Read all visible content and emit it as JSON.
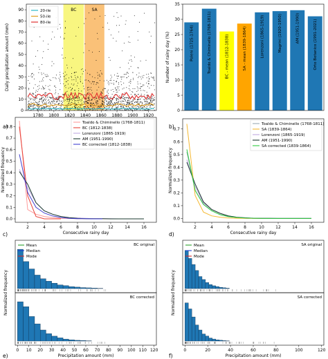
{
  "chart_data": [
    {
      "panel": "a)",
      "type": "scatter",
      "xlabel": "Time (yr)",
      "ylabel": "Daily precipitation amount (mm)",
      "xlim": [
        1765,
        1930
      ],
      "ylim": [
        0,
        95
      ],
      "xticks": [
        1780,
        1800,
        1820,
        1840,
        1860,
        1880,
        1900,
        1920
      ],
      "yticks": [
        0,
        10,
        20,
        30,
        40,
        50,
        60,
        70,
        80,
        90
      ],
      "shaded": [
        {
          "label": "BC",
          "from": 1812,
          "to": 1838,
          "color": "#f7f56a"
        },
        {
          "label": "SA",
          "from": 1839,
          "to": 1864,
          "color": "#f9b660"
        }
      ],
      "series": [
        {
          "name": "20-ile",
          "color": "#2ab8c8",
          "value": 1.5
        },
        {
          "name": "50-ile",
          "color": "#e0a020",
          "value": 5
        },
        {
          "name": "80-ile",
          "color": "#e03030",
          "value": 13
        }
      ]
    },
    {
      "panel": "b)",
      "type": "bar",
      "ylabel": "Number of rainy day (%)",
      "ylim": [
        0,
        35
      ],
      "yticks": [
        0,
        5,
        10,
        15,
        20,
        25,
        30,
        35
      ],
      "categories": [
        "Poleni (1725-1764)",
        "Toaldo & Chiminello (1768-1811)",
        "BC - mean (1812-1838)",
        "SA - mean (1839-1864)",
        "Lorenzoni (1865-1919)",
        "Magrini (1920-1950)",
        "AM (1951-1990)",
        "Orto Botanico (1991-2021)"
      ],
      "values": [
        29,
        33.5,
        26,
        28.6,
        32.3,
        32.7,
        33,
        31
      ],
      "colors": [
        "#1f77b4",
        "#1f77b4",
        "#ffff00",
        "#ffa500",
        "#1f77b4",
        "#1f77b4",
        "#1f77b4",
        "#1f77b4"
      ]
    },
    {
      "panel": "c)",
      "type": "line",
      "xlabel": "Consecutive rainy day",
      "ylabel": "Normalized frequency",
      "xlim": [
        0.5,
        17.5
      ],
      "ylim": [
        -0.03,
        0.88
      ],
      "xticks": [
        2,
        4,
        6,
        8,
        10,
        12,
        14,
        16
      ],
      "yticks": [
        0.0,
        0.1,
        0.2,
        0.3,
        0.4,
        0.5,
        0.6,
        0.7,
        0.8
      ],
      "x": [
        1,
        2,
        3,
        4,
        5,
        6,
        7,
        8,
        9,
        10,
        11,
        12,
        13,
        14,
        15,
        16
      ],
      "series": [
        {
          "name": "Toaldo & Chiminello (1768-1811)",
          "color": "#ff9a9a",
          "values": [
            0.85,
            0.08,
            0.04,
            0.02,
            0.01,
            0.005,
            0.003,
            0.002,
            0.001,
            0.001,
            0.0,
            0.0,
            0.0,
            0.0,
            0.0,
            0.0
          ]
        },
        {
          "name": "BC (1812-1838)",
          "color": "#e8443a",
          "values": [
            0.8,
            0.2,
            0.02,
            0.0,
            0.0,
            0.0,
            null,
            null,
            null,
            null,
            null,
            null,
            null,
            null,
            null,
            null
          ]
        },
        {
          "name": "Lorenzoni (1865-1919)",
          "color": "#bfa8e0",
          "values": [
            0.43,
            0.27,
            0.14,
            0.07,
            0.04,
            0.02,
            0.01,
            0.008,
            0.004,
            0.002,
            0.001,
            0.001,
            0.0,
            0.0,
            0.0,
            0.0
          ]
        },
        {
          "name": "AM (1951-1990)",
          "color": "#1a3a2e",
          "values": [
            0.41,
            0.3,
            0.14,
            0.07,
            0.04,
            0.02,
            0.01,
            0.005,
            0.002,
            0.001,
            0.001,
            0.0,
            0.0,
            0.0,
            0.0,
            0.0
          ]
        },
        {
          "name": "BC corrected (1812-1838)",
          "color": "#4040d0",
          "values": [
            0.56,
            0.23,
            0.1,
            0.05,
            0.025,
            0.012,
            0.005,
            0.002,
            0.001,
            0.0,
            0.0,
            null,
            null,
            null,
            null,
            null
          ]
        }
      ]
    },
    {
      "panel": "d)",
      "type": "line",
      "xlabel": "Consecutive rainy day",
      "ylabel": "Normalized frequency",
      "xlim": [
        0.5,
        17.5
      ],
      "ylim": [
        -0.03,
        0.78
      ],
      "xticks": [
        2,
        4,
        6,
        8,
        10,
        12,
        14,
        16
      ],
      "yticks": [
        0.0,
        0.1,
        0.2,
        0.3,
        0.4,
        0.5,
        0.6,
        0.7
      ],
      "x": [
        1,
        2,
        3,
        4,
        5,
        6,
        7,
        8,
        9,
        10,
        11,
        12,
        13,
        14,
        15,
        16
      ],
      "series": [
        {
          "name": "Toaldo & Chiminello (1768-1811)",
          "color": "#9aaab4",
          "values": [
            0.52,
            0.22,
            0.11,
            0.06,
            0.03,
            0.015,
            0.008,
            0.004,
            0.002,
            0.001,
            0.0,
            0.0,
            0.0,
            0.0,
            0.0,
            0.0
          ]
        },
        {
          "name": "SA (1839-1864)",
          "color": "#f5b830",
          "values": [
            0.74,
            0.18,
            0.05,
            0.02,
            0.01,
            0.004,
            0.002,
            0.001,
            0.0,
            0.0,
            0.0,
            null,
            null,
            null,
            null,
            null
          ]
        },
        {
          "name": "Lorenzoni (1865-1919)",
          "color": "#bfa8e0",
          "values": [
            0.46,
            0.25,
            0.12,
            0.07,
            0.04,
            0.02,
            0.01,
            0.006,
            0.003,
            0.002,
            0.001,
            0.0,
            0.0,
            0.0,
            0.0,
            0.0
          ]
        },
        {
          "name": "AM (1951-1990)",
          "color": "#1a3a2e",
          "values": [
            0.44,
            0.27,
            0.13,
            0.07,
            0.04,
            0.02,
            0.01,
            0.005,
            0.002,
            0.001,
            0.001,
            0.0,
            0.0,
            0.0,
            0.0,
            0.0
          ]
        },
        {
          "name": "SA corrected (1839-1864)",
          "color": "#2ecc40",
          "values": [
            0.54,
            0.22,
            0.11,
            0.06,
            0.03,
            0.015,
            0.008,
            0.004,
            0.002,
            0.001,
            0.0,
            0.0,
            0.0,
            0.0,
            0.0,
            0.0
          ]
        }
      ]
    },
    {
      "panel": "e)",
      "type": "bar",
      "xlabel": "Precipitation amount (mm)",
      "ylabel": "Normalized frequency",
      "xlim": [
        -2,
        122
      ],
      "xticks": [
        0,
        10,
        20,
        30,
        40,
        50,
        60,
        70,
        80,
        90,
        100,
        110,
        120
      ],
      "subplots": [
        {
          "title": "BC original",
          "bin_width": 5,
          "values": [
            0.16,
            0.11,
            0.08,
            0.055,
            0.04,
            0.03,
            0.022,
            0.015,
            0.012,
            0.008,
            0.006,
            0.004,
            0.003,
            0.002,
            0.001
          ],
          "ylim": [
            0,
            0.18
          ]
        },
        {
          "title": "BC corrected",
          "bin_width": 5,
          "values": [
            0.16,
            0.14,
            0.1,
            0.07,
            0.045,
            0.03,
            0.02,
            0.013,
            0.008,
            0.005,
            0.003,
            0.002,
            0.001
          ],
          "ylim": [
            0,
            0.18
          ]
        }
      ],
      "legend": [
        {
          "name": "Mean",
          "color": "#2ca02c"
        },
        {
          "name": "Median",
          "color": "#1f3fd0"
        },
        {
          "name": "Mode",
          "color": "#d62728"
        }
      ]
    },
    {
      "panel": "f)",
      "type": "bar",
      "xlabel": "Precipitation amount (mm)",
      "ylabel": "Normalized frequency",
      "xlim": [
        -2,
        122
      ],
      "xticks": [
        0,
        20,
        40,
        60,
        80,
        100,
        120
      ],
      "subplots": [
        {
          "title": "SA original",
          "bin_width": 3,
          "values": [
            0.19,
            0.15,
            0.12,
            0.09,
            0.06,
            0.045,
            0.03,
            0.02,
            0.014,
            0.01,
            0.006,
            0.004,
            0.002
          ],
          "ylim": [
            0,
            0.22
          ]
        },
        {
          "title": "SA corrected",
          "bin_width": 3,
          "values": [
            0.19,
            0.16,
            0.12,
            0.08,
            0.055,
            0.035,
            0.025,
            0.015,
            0.01,
            0.006,
            0.004,
            0.002,
            0.001
          ],
          "ylim": [
            0,
            0.22
          ]
        }
      ],
      "legend": [
        {
          "name": "Mean",
          "color": "#2ca02c"
        },
        {
          "name": "Median",
          "color": "#1f3fd0"
        },
        {
          "name": "Mode",
          "color": "#d62728"
        }
      ]
    }
  ]
}
